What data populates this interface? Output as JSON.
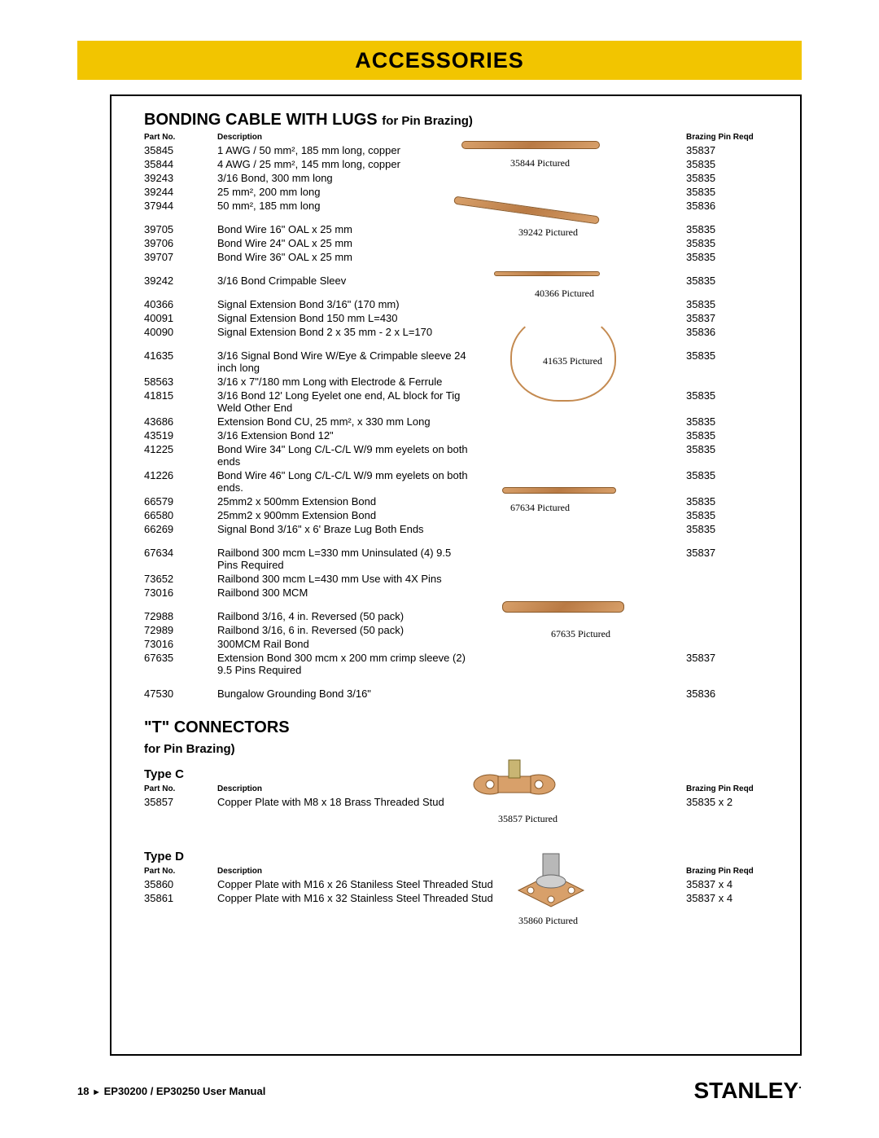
{
  "banner": {
    "title": "ACCESSORIES"
  },
  "section1": {
    "title_main": "BONDING CABLE WITH LUGS ",
    "title_sub": "for Pin Brazing)",
    "headers": {
      "part": "Part No.",
      "desc": "Description",
      "pin": "Brazing Pin Reqd"
    },
    "rows": [
      {
        "p": "35845",
        "d": "1 AWG / 50 mm², 185 mm long, copper",
        "q": "35837"
      },
      {
        "p": "35844",
        "d": "4 AWG / 25 mm², 145 mm long, copper",
        "q": "35835"
      },
      {
        "p": "39243",
        "d": "3/16 Bond, 300 mm long",
        "q": "35835"
      },
      {
        "p": "39244",
        "d": "25 mm², 200 mm long",
        "q": "35835"
      },
      {
        "p": "37944",
        "d": "50 mm², 185 mm long",
        "q": "35836"
      },
      {
        "spacer": true
      },
      {
        "p": "39705",
        "d": "Bond Wire 16\" OAL x 25 mm",
        "q": "35835"
      },
      {
        "p": "39706",
        "d": "Bond Wire 24\" OAL x 25 mm",
        "q": "35835"
      },
      {
        "p": "39707",
        "d": "Bond Wire 36\" OAL x 25 mm",
        "q": "35835"
      },
      {
        "spacer": true
      },
      {
        "p": "39242",
        "d": "3/16 Bond Crimpable Sleev",
        "q": "35835"
      },
      {
        "spacer": true
      },
      {
        "p": "40366",
        "d": "Signal Extension Bond 3/16\" (170 mm)",
        "q": "35835"
      },
      {
        "p": "40091",
        "d": "Signal Extension Bond 150 mm L=430",
        "q": "35837"
      },
      {
        "p": "40090",
        "d": "Signal Extension Bond 2 x 35 mm - 2 x L=170",
        "q": "35836"
      },
      {
        "spacer": true
      },
      {
        "p": "41635",
        "d": "3/16 Signal Bond Wire W/Eye & Crimpable sleeve 24 inch long",
        "q": "35835"
      },
      {
        "p": "58563",
        "d": "3/16 x 7\"/180 mm Long with Electrode & Ferrule",
        "q": ""
      },
      {
        "p": "41815",
        "d": "3/16 Bond 12' Long Eyelet one end, AL block for Tig Weld Other End",
        "q": "35835"
      },
      {
        "p": "43686",
        "d": "Extension Bond CU, 25 mm², x 330 mm Long",
        "q": "35835"
      },
      {
        "p": "43519",
        "d": "3/16 Extension Bond 12\"",
        "q": "35835"
      },
      {
        "p": "41225",
        "d": "Bond Wire 34\" Long C/L-C/L W/9 mm eyelets on both ends",
        "q": "35835"
      },
      {
        "p": "41226",
        "d": "Bond Wire 46\" Long C/L-C/L W/9 mm eyelets on both ends.",
        "q": "35835"
      },
      {
        "p": "66579",
        "d": "25mm2 x 500mm Extension Bond",
        "q": "35835"
      },
      {
        "p": "66580",
        "d": "25mm2 x 900mm Extension Bond",
        "q": "35835"
      },
      {
        "p": "66269",
        "d": "Signal Bond 3/16\" x 6' Braze Lug Both Ends",
        "q": "35835"
      },
      {
        "spacer": true
      },
      {
        "p": "67634",
        "d": "Railbond 300 mcm L=330 mm Uninsulated (4) 9.5 Pins Required",
        "q": "35837"
      },
      {
        "p": "73652",
        "d": "Railbond 300 mcm L=430 mm Use with 4X Pins",
        "q": ""
      },
      {
        "p": "73016",
        "d": "Railbond 300 MCM",
        "q": ""
      },
      {
        "spacer": true
      },
      {
        "p": "72988",
        "d": "Railbond 3/16, 4 in. Reversed (50 pack)",
        "q": ""
      },
      {
        "p": "72989",
        "d": "Railbond 3/16, 6 in. Reversed (50 pack)",
        "q": ""
      },
      {
        "p": "73016",
        "d": "300MCM Rail Bond",
        "q": ""
      },
      {
        "p": "67635",
        "d": "Extension Bond 300 mcm x 200 mm crimp sleeve (2) 9.5 Pins Required",
        "q": "35837"
      },
      {
        "spacer": true
      },
      {
        "p": "47530",
        "d": "Bungalow Grounding Bond 3/16\"",
        "q": "35836"
      }
    ],
    "pictured": {
      "a": "35844 Pictured",
      "b": "39242 Pictured",
      "c": "40366 Pictured",
      "d": "41635 Pictured",
      "e": "67634 Pictured",
      "f": "67635 Pictured"
    }
  },
  "section2": {
    "title": "\"T\" CONNECTORS",
    "sub": "for Pin Brazing)",
    "typeC": {
      "label": "Type C",
      "headers": {
        "part": "Part No.",
        "desc": "Description",
        "pin": "Brazing Pin Reqd"
      },
      "rows": [
        {
          "p": "35857",
          "d": "Copper Plate with M8 x 18 Brass Threaded Stud",
          "q": "35835 x 2"
        }
      ],
      "pictured": "35857 Pictured"
    },
    "typeD": {
      "label": "Type D",
      "headers": {
        "part": "Part No.",
        "desc": "Description",
        "pin": "Brazing Pin Reqd"
      },
      "rows": [
        {
          "p": "35860",
          "d": "Copper Plate with M16 x 26 Staniless Steel Threaded Stud",
          "q": "35837 x 4"
        },
        {
          "p": "35861",
          "d": "Copper Plate with M16 x 32 Stainless Steel Threaded Stud",
          "q": "35837 x 4"
        }
      ],
      "pictured": "35860 Pictured"
    }
  },
  "footer": {
    "page": "18",
    "arrow": "►",
    "doc": "EP30200 / EP30250 User Manual",
    "brand": "STANLEY"
  }
}
